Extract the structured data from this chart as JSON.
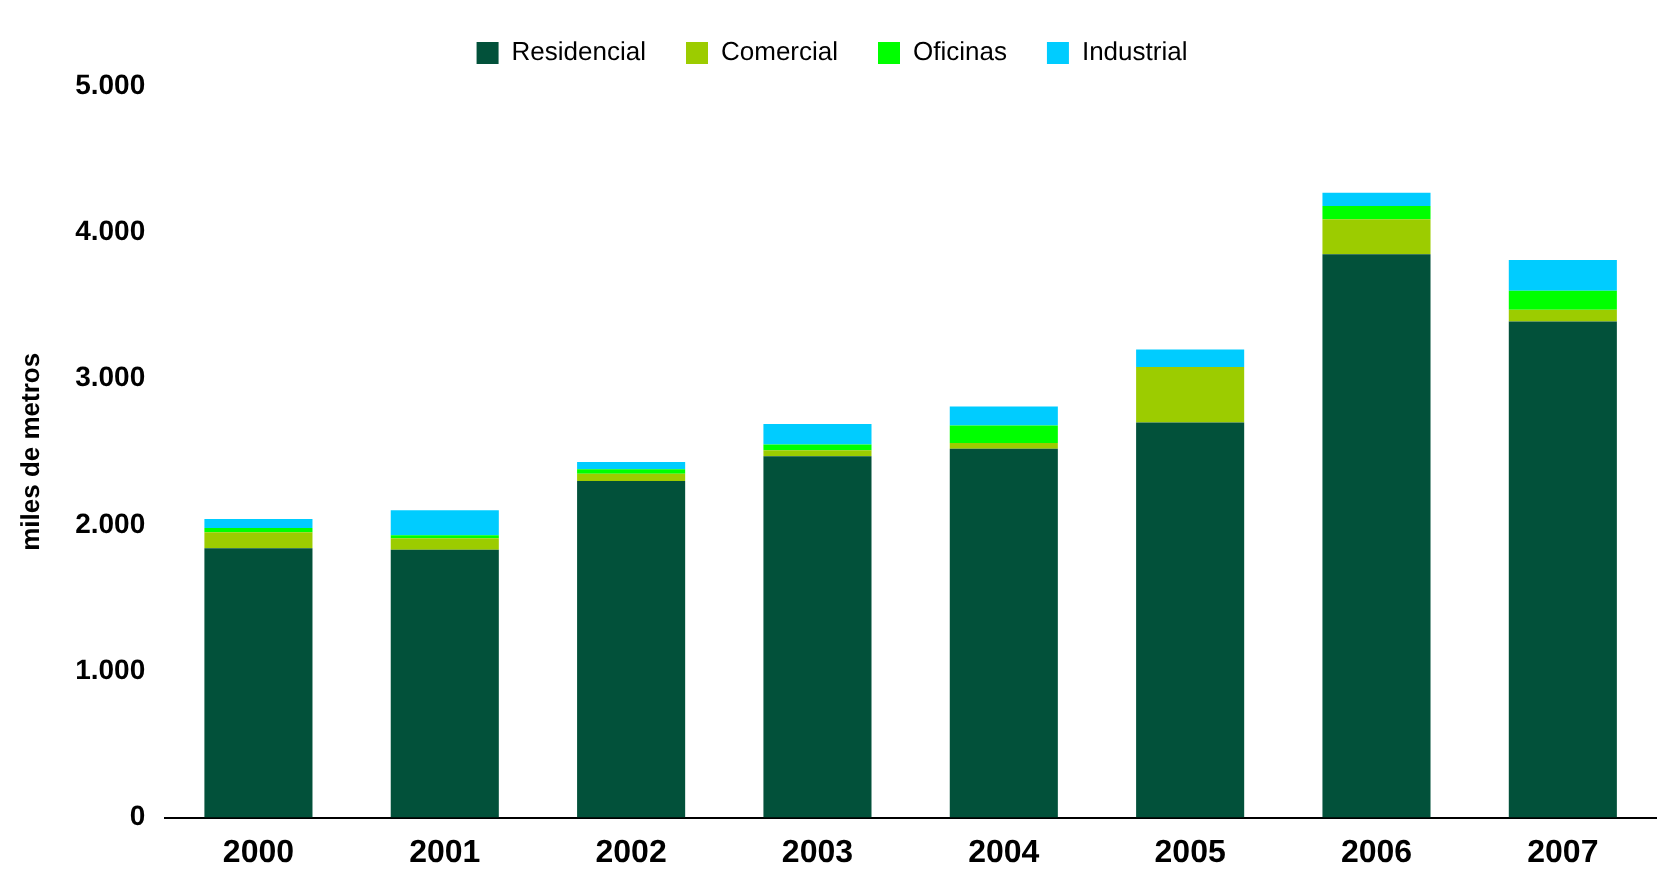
{
  "chart_data": {
    "type": "bar",
    "stacked": true,
    "ylabel": "miles de metros",
    "legend": "top",
    "grid": false,
    "categories": [
      "2000",
      "2001",
      "2002",
      "2003",
      "2004",
      "2005",
      "2006",
      "2007"
    ],
    "series": [
      {
        "name": "Residencial",
        "color": "#02513a",
        "values": [
          1840,
          1830,
          2300,
          2470,
          2520,
          2700,
          3850,
          3390
        ]
      },
      {
        "name": "Comercial",
        "color": "#9ccc00",
        "values": [
          110,
          80,
          50,
          40,
          40,
          380,
          240,
          80
        ]
      },
      {
        "name": "Oficinas",
        "color": "#00ff00",
        "values": [
          30,
          20,
          30,
          40,
          120,
          0,
          90,
          130
        ]
      },
      {
        "name": "Industrial",
        "color": "#00ccff",
        "values": [
          60,
          170,
          50,
          140,
          130,
          120,
          90,
          210
        ]
      }
    ],
    "ylim": [
      0,
      5000
    ],
    "yticks": [
      {
        "value": 0,
        "label": "0"
      },
      {
        "value": 1000,
        "label": "1.000"
      },
      {
        "value": 2000,
        "label": "2.000"
      },
      {
        "value": 3000,
        "label": "3.000"
      },
      {
        "value": 4000,
        "label": "4.000"
      },
      {
        "value": 5000,
        "label": "5.000"
      }
    ]
  }
}
